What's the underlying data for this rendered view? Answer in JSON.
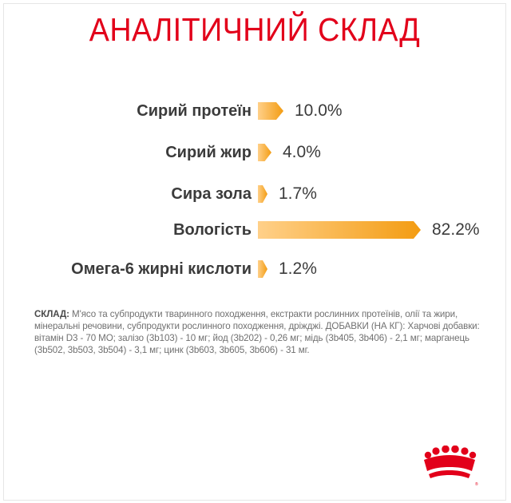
{
  "title": "АНАЛІТИЧНИЙ СКЛАД",
  "chart_data": {
    "type": "bar",
    "title": "АНАЛІТИЧНИЙ СКЛАД",
    "categories": [
      "Сирий протеїн",
      "Сирий жир",
      "Сира зола",
      "Вологість",
      "Омега-6 жирні кислоти"
    ],
    "values": [
      10.0,
      4.0,
      1.7,
      82.2,
      1.2
    ],
    "value_labels": [
      "10.0%",
      "4.0%",
      "1.7%",
      "82.2%",
      "1.2%"
    ],
    "unit": "%",
    "orientation": "horizontal",
    "colors": {
      "bar_start": "#ffd089",
      "bar_end": "#f39c12"
    }
  },
  "composition": {
    "heading": "СКЛАД:",
    "text": "М'ясо та субпродукти тваринного походження, екстракти рослинних протеїнів, олії та жири, мінеральні речовини, субпродукти рослинного походження, дріжджі. ДОБАВКИ (НА КГ): Харчові добавки: вітамін D3 - 70 МО; залізо (3b103) - 10 мг; йод (3b202) - 0,26 мг; мідь (3b405, 3b406) - 2,1 мг; марганець (3b502, 3b503, 3b504) - 3,1 мг; цинк (3b603, 3b605, 3b606) - 31 мг."
  },
  "colors": {
    "title": "#e2001a",
    "label": "#3b3b3b",
    "logo": "#e2001a"
  },
  "logo": {
    "icon": "royal-canin-crown-icon"
  }
}
